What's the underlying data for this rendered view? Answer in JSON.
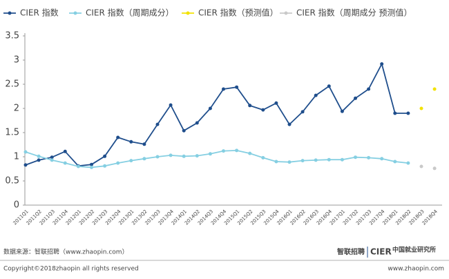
{
  "chart_data": {
    "type": "line",
    "categories": [
      "2011Q1",
      "2011Q2",
      "2011Q3",
      "2011Q4",
      "2012Q1",
      "2012Q2",
      "2012Q3",
      "2012Q4",
      "2013Q1",
      "2013Q2",
      "2013Q3",
      "2013Q4",
      "2014Q1",
      "2014Q2",
      "2014Q3",
      "2014Q4",
      "2015Q1",
      "2015Q2",
      "2015Q3",
      "2015Q4",
      "2016Q1",
      "2016Q2",
      "2016Q3",
      "2016Q4",
      "2017Q1",
      "2017Q2",
      "2017Q3",
      "2017Q4",
      "2018Q1",
      "2018Q2",
      "2018Q3",
      "2018Q4"
    ],
    "series": [
      {
        "name": "CIER 指数",
        "color": "#1f4e8c",
        "style": "line",
        "values": [
          0.83,
          0.93,
          0.99,
          1.11,
          0.81,
          0.84,
          1.01,
          1.4,
          1.31,
          1.26,
          1.67,
          2.07,
          1.54,
          1.7,
          2.0,
          2.4,
          2.44,
          2.06,
          1.97,
          2.11,
          1.67,
          1.93,
          2.27,
          2.46,
          1.94,
          2.21,
          2.4,
          2.92,
          1.9,
          1.9,
          null,
          null
        ]
      },
      {
        "name": "CIER 指数（周期成分）",
        "color": "#85cfe2",
        "style": "line",
        "values": [
          1.1,
          1.01,
          0.93,
          0.87,
          0.8,
          0.78,
          0.81,
          0.87,
          0.92,
          0.96,
          1.0,
          1.03,
          1.01,
          1.02,
          1.06,
          1.12,
          1.13,
          1.07,
          0.98,
          0.9,
          0.89,
          0.92,
          0.93,
          0.94,
          0.94,
          0.99,
          0.98,
          0.96,
          0.9,
          0.87,
          null,
          null
        ]
      },
      {
        "name": "CIER 指数（预测值）",
        "color": "#f2e200",
        "style": "markers",
        "values": [
          null,
          null,
          null,
          null,
          null,
          null,
          null,
          null,
          null,
          null,
          null,
          null,
          null,
          null,
          null,
          null,
          null,
          null,
          null,
          null,
          null,
          null,
          null,
          null,
          null,
          null,
          null,
          null,
          null,
          null,
          2.0,
          2.4
        ]
      },
      {
        "name": "CIER 指数（周期成分  预测值）",
        "color": "#c9c9c9",
        "style": "markers",
        "values": [
          null,
          null,
          null,
          null,
          null,
          null,
          null,
          null,
          null,
          null,
          null,
          null,
          null,
          null,
          null,
          null,
          null,
          null,
          null,
          null,
          null,
          null,
          null,
          null,
          null,
          null,
          null,
          null,
          null,
          null,
          0.8,
          0.76
        ]
      }
    ],
    "ylim": [
      0,
      3.5
    ],
    "yticks": [
      0,
      0.5,
      1,
      1.5,
      2,
      2.5,
      3,
      3.5
    ],
    "grid": false
  },
  "footer": {
    "source": "数据来源：智联招聘（www.zhaopin.com）",
    "copyright": "Copyright©2018zhaopin all rights reserved",
    "website": "www.zhaopin.com",
    "logo_zhaopin": "智联招聘",
    "logo_cier": "CIER",
    "logo_cier_cn": "中国就业研究所"
  }
}
